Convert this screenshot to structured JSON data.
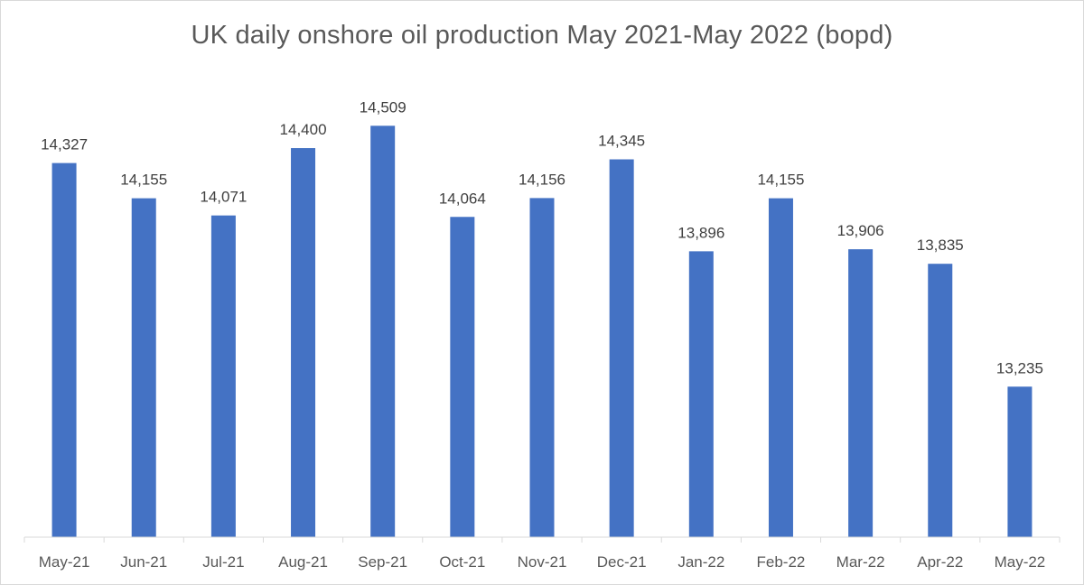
{
  "chart_data": {
    "type": "bar",
    "title": "UK daily onshore oil production May 2021-May 2022 (bopd)",
    "xlabel": "",
    "ylabel": "",
    "categories": [
      "May-21",
      "Jun-21",
      "Jul-21",
      "Aug-21",
      "Sep-21",
      "Oct-21",
      "Nov-21",
      "Dec-21",
      "Jan-22",
      "Feb-22",
      "Mar-22",
      "Apr-22",
      "May-22"
    ],
    "values": [
      14327,
      14155,
      14071,
      14400,
      14509,
      14064,
      14156,
      14345,
      13896,
      14155,
      13906,
      13835,
      13235
    ],
    "data_labels": [
      "14,327",
      "14,155",
      "14,071",
      "14,400",
      "14,509",
      "14,064",
      "14,156",
      "14,345",
      "13,896",
      "14,155",
      "13,906",
      "13,835",
      "13,235"
    ],
    "ylim": [
      12500,
      14700
    ],
    "grid": false,
    "legend": "none",
    "bar_color": "#4472c4"
  }
}
